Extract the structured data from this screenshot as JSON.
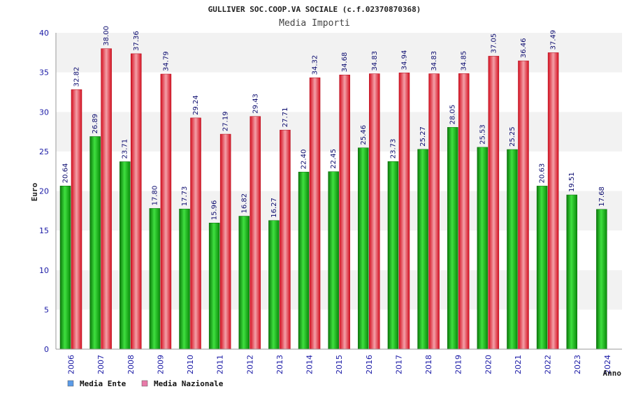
{
  "chart_data": {
    "type": "bar",
    "title": "GULLIVER SOC.COOP.VA SOCIALE (c.f.02370870368)",
    "subtitle": "Media Importi",
    "ylabel": "Euro",
    "xlabel": "Anno",
    "ylim": [
      0,
      40
    ],
    "yticks": [
      "0",
      "5",
      "10",
      "15",
      "20",
      "25",
      "30",
      "35",
      "40"
    ],
    "categories": [
      "2006",
      "2007",
      "2008",
      "2009",
      "2010",
      "2011",
      "2012",
      "2013",
      "2014",
      "2015",
      "2016",
      "2017",
      "2018",
      "2019",
      "2020",
      "2021",
      "2022",
      "2023",
      "2024"
    ],
    "series": [
      {
        "name": "Media Ente",
        "color": "#1fbf1f",
        "values": [
          20.64,
          26.89,
          23.71,
          17.8,
          17.73,
          15.96,
          16.82,
          16.27,
          22.4,
          22.45,
          25.46,
          23.73,
          25.27,
          28.05,
          25.53,
          25.25,
          20.63,
          19.51,
          17.68
        ],
        "labels": [
          "20.64",
          "26.89",
          "23.71",
          "17.80",
          "17.73",
          "15.96",
          "16.82",
          "16.27",
          "22.40",
          "22.45",
          "25.46",
          "23.73",
          "25.27",
          "28.05",
          "25.53",
          "25.25",
          "20.63",
          "19.51",
          "17.68"
        ]
      },
      {
        "name": "Media Nazionale",
        "color": "#ee2a3a",
        "values": [
          32.82,
          38.0,
          37.36,
          34.79,
          29.24,
          27.19,
          29.43,
          27.71,
          34.32,
          34.68,
          34.83,
          34.94,
          34.83,
          34.85,
          37.05,
          36.46,
          37.49,
          null,
          null
        ],
        "labels": [
          "32.82",
          "38.00",
          "37.36",
          "34.79",
          "29.24",
          "27.19",
          "29.43",
          "27.71",
          "34.32",
          "34.68",
          "34.83",
          "34.94",
          "34.83",
          "34.85",
          "37.05",
          "36.46",
          "37.49",
          "",
          ""
        ]
      }
    ],
    "legend": [
      {
        "label": "Media Ente",
        "color": "#5b9be8"
      },
      {
        "label": "Media Nazionale",
        "color": "#e87aa8"
      }
    ],
    "legend_position": "bottom-left"
  }
}
